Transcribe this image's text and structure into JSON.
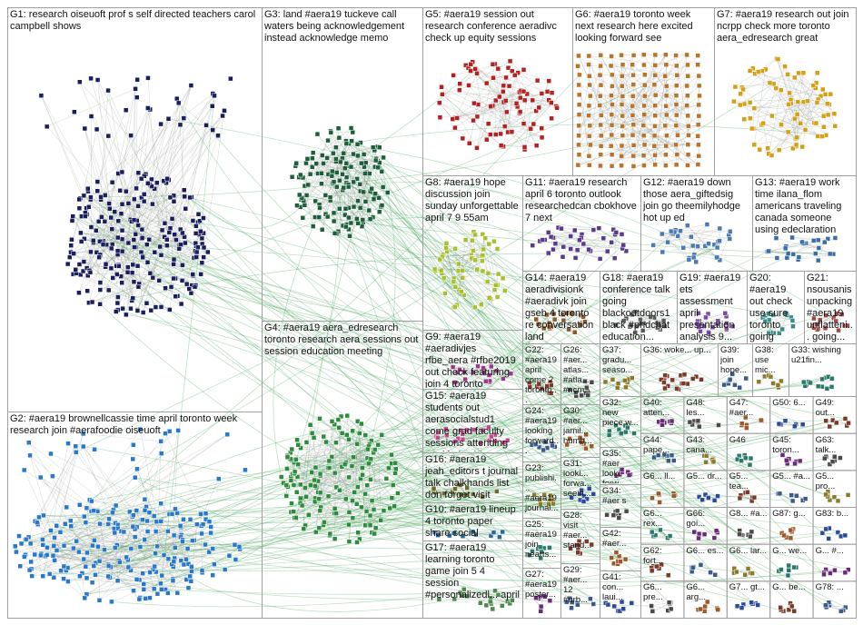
{
  "groups": [
    {
      "label": "G1: research oiseuoft prof s self directed teachers carol campbell shows"
    },
    {
      "label": "G3: land #aera19 tuckeve call waters being acknowledgement instead acknowledge memo"
    },
    {
      "label": "G5: #aera19 session out research conference aeradivc check up equity sessions"
    },
    {
      "label": "G6: #aera19 toronto week next research here excited looking forward see"
    },
    {
      "label": "G7: #aera19 research out join ncrpp check more toronto aera_edresearch great"
    },
    {
      "label": "G8: #aera19 hope discussion join sunday unforgettable april 7 9 55am"
    },
    {
      "label": "G11: #aera19 research april 6 toronto outlook researchedcan cbokhove 7 next"
    },
    {
      "label": "G12: #aera19 down those aera_giftedsig join go theemilyhodge hot up ed"
    },
    {
      "label": "G13: #aera19 work time ilana_flom americans traveling canada someone using edeclaration"
    },
    {
      "label": "G4: #aera19 aera_edresearch toronto research aera sessions out session education meeting"
    },
    {
      "label": "G9: #aera19 #aeradivjes rfbe_aera #rfbe2019 out check featuring join 4 toronto"
    },
    {
      "label": "G2: #aera19 brownellcassie time april toronto week research join #aerafoodie oiseuoft"
    },
    {
      "label": "G14: #aera19 aeradivisionk #aeradivk join gseb 4 toronto re conversation land"
    },
    {
      "label": "G18: #aera19 conference talk going blackoutdoors1 black #phdchat education..."
    },
    {
      "label": "G19: #aera19 ets assessment april presentation analysis 9..."
    },
    {
      "label": "G20: #aera19 out check use sure toronto going dlpcoachin..."
    },
    {
      "label": "G21: nsousanis unpacking #aera19 unflatteni... going..."
    },
    {
      "label": "G15: #aera19 students out aerasocialstud1 come grad faculty sessions attending markhelmsing"
    },
    {
      "label": "G16: #aera19 jeah_editors t journal talk chalkhands list don forget visit"
    },
    {
      "label": "G10: #aera19 lineup 4 toronto paper share social presentation title research"
    },
    {
      "label": "G17: #aera19 learning toronto game join 5 4 session #personalizedl... april"
    },
    {
      "label": "G22: #aera19 april come 2 toronto..."
    },
    {
      "label": "G24: #aera19 looking forward..."
    },
    {
      "label": "G23: publishi... #aera19 journal..."
    },
    {
      "label": "G25: #aera19 join nearts..."
    },
    {
      "label": "G27: #aera19 poster..."
    },
    {
      "label": "G26: #aer... atlas... #atla... #ncm..."
    },
    {
      "label": "G30: #aer... jamil... humb..."
    },
    {
      "label": "G31: looki... forwa... seein..."
    },
    {
      "label": "G28: visit #aer... stand..."
    },
    {
      "label": "G29: #aer... 12 #urb..."
    },
    {
      "label": "G37: gradu... seaso..."
    },
    {
      "label": "G32: new piece w..."
    },
    {
      "label": "G35: #aer looki forw..."
    },
    {
      "label": "G34: #aer s"
    },
    {
      "label": "G42: #aer..."
    },
    {
      "label": "G41: con... laui..."
    },
    {
      "label": "G36: woke... up..."
    },
    {
      "label": "G39: join hope..."
    },
    {
      "label": "G38: use mic..."
    },
    {
      "label": "G33: wishing u21fin..."
    },
    {
      "label": "G40: atten..."
    },
    {
      "label": "G48: les..."
    },
    {
      "label": "G47: #aer..."
    },
    {
      "label": "G50: 6..."
    },
    {
      "label": "G49: out..."
    },
    {
      "label": "G44: pape..."
    },
    {
      "label": "G43: cana..."
    },
    {
      "label": "G46"
    },
    {
      "label": "G45: toron..."
    },
    {
      "label": "G63: talk..."
    },
    {
      "label": "G6... ll..."
    },
    {
      "label": "G5... dr..."
    },
    {
      "label": "G5... tea..."
    },
    {
      "label": "G5... #a..."
    },
    {
      "label": "G5... pro..."
    },
    {
      "label": "G6... rex..."
    },
    {
      "label": "G66: goi..."
    },
    {
      "label": "G8... #a..."
    },
    {
      "label": "G87: g..."
    },
    {
      "label": "G83: b..."
    },
    {
      "label": "G62: fort..."
    },
    {
      "label": "G6... es..."
    },
    {
      "label": "G6... lar..."
    },
    {
      "label": "G... we..."
    },
    {
      "label": "G... #..."
    },
    {
      "label": "G6... pre..."
    },
    {
      "label": "G6... arg..."
    },
    {
      "label": "G7... gt..."
    },
    {
      "label": "G... be..."
    },
    {
      "label": "G78: ..."
    }
  ]
}
